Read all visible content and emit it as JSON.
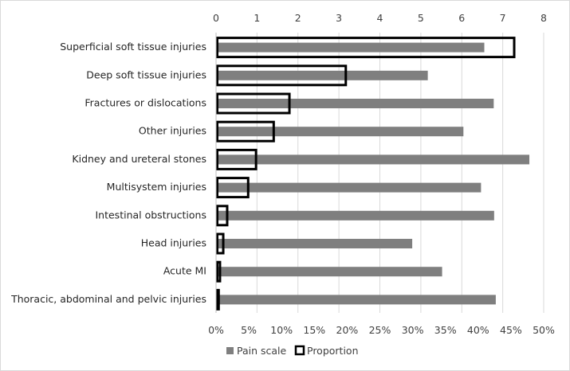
{
  "chart_data": {
    "type": "bar",
    "orientation": "horizontal",
    "categories": [
      "Superficial soft tissue injuries",
      "Deep soft tissue injuries",
      "Fractures or dislocations",
      "Other injuries",
      "Kidney and ureteral stones",
      "Multisystem injuries",
      "Intestinal obstructions",
      "Head injuries",
      "Acute MI",
      "Thoracic, abdominal and pelvic injuries"
    ],
    "series": [
      {
        "name": "Pain scale",
        "axis": "top",
        "color": "#7f7f7f",
        "values": [
          6.55,
          5.17,
          6.78,
          6.04,
          7.65,
          6.47,
          6.79,
          4.79,
          5.52,
          6.83
        ]
      },
      {
        "name": "Proportion",
        "axis": "bottom",
        "color": "#000000",
        "values": [
          45.5,
          19.8,
          11.2,
          8.8,
          6.1,
          4.9,
          1.7,
          1.1,
          0.6,
          0.4
        ]
      }
    ],
    "top_axis": {
      "min": 0,
      "max": 8,
      "ticks": [
        "0",
        "1",
        "2",
        "3",
        "4",
        "5",
        "6",
        "7",
        "8"
      ]
    },
    "bottom_axis": {
      "min": 0,
      "max": 50,
      "ticks": [
        "0%",
        "5%",
        "10%",
        "15%",
        "20%",
        "25%",
        "30%",
        "35%",
        "40%",
        "45%",
        "50%"
      ]
    },
    "grid": true,
    "legend_position": "bottom",
    "title": "",
    "xlabel": "",
    "ylabel": ""
  }
}
